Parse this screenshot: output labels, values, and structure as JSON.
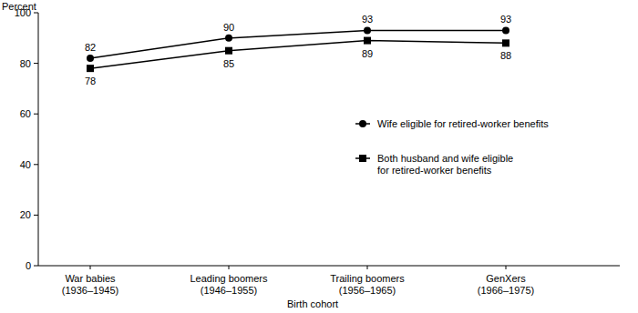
{
  "chart_data": {
    "type": "line",
    "ylabel": "Percent",
    "xlabel": "Birth cohort",
    "categories": [
      "War babies\n(1936–1945)",
      "Leading boomers\n(1946–1955)",
      "Trailing boomers\n(1956–1965)",
      "GenXers\n(1966–1975)"
    ],
    "series": [
      {
        "name": "Wife eligible for retired-worker benefits",
        "color": "#000000",
        "marker": "circle",
        "line_style": "solid",
        "values": [
          82,
          90,
          93,
          93
        ]
      },
      {
        "name": "Both husband and wife eligible\nfor retired-worker benefits",
        "color": "#000000",
        "marker": "square",
        "line_style": "solid",
        "values": [
          78,
          85,
          89,
          88
        ]
      }
    ],
    "ylim": [
      0,
      100
    ],
    "yticks": [
      0,
      20,
      40,
      60,
      80,
      100
    ],
    "grid": false,
    "legend": "right",
    "data_labels": true
  }
}
